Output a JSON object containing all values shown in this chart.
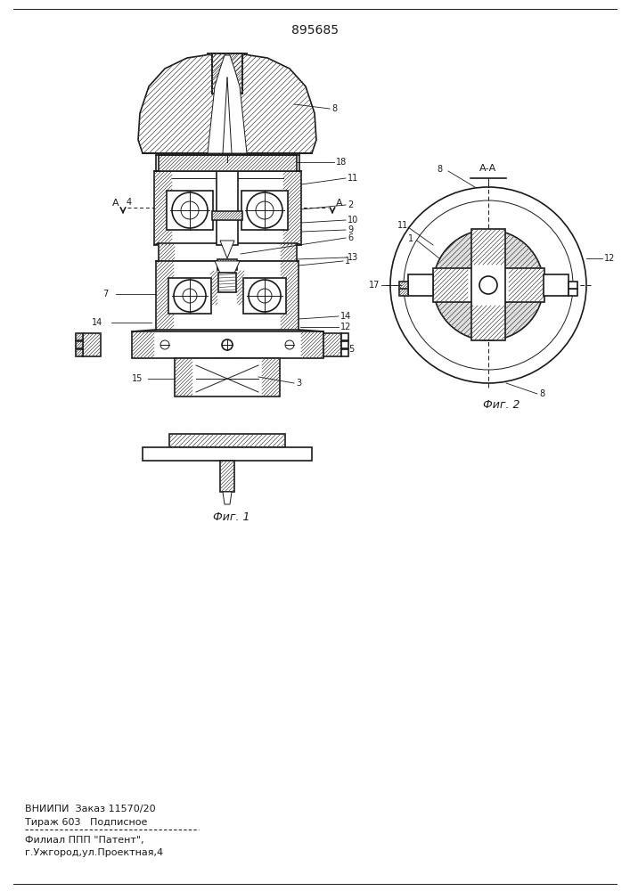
{
  "title": "895685",
  "fig1_caption": "Фиг. 1",
  "fig2_caption": "Фиг. 2",
  "section_label": "А-А",
  "A_label": "А",
  "footer_line1": "ВНИИПИ  Заказ 11570/20",
  "footer_line2": "Тираж 603   Подписное",
  "footer_line3": "Филиал ППП \"Патент\",",
  "footer_line4": "г.Ужгород,ул.Проектная,4",
  "bg_color": "#ffffff",
  "line_color": "#1a1a1a",
  "hatch_color": "#444444",
  "label_fontsize": 7,
  "title_fontsize": 10
}
